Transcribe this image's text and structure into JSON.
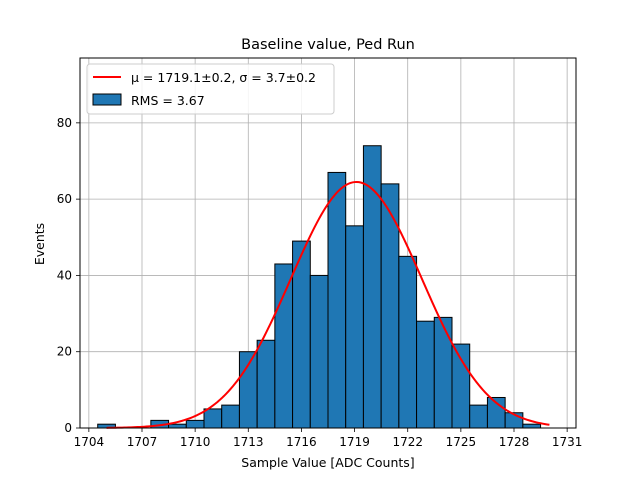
{
  "chart_data": {
    "type": "bar",
    "title": "Baseline value, Ped Run",
    "xlabel": "Sample Value [ADC Counts]",
    "ylabel": "Events",
    "xlim": [
      1703.5,
      1731.5
    ],
    "ylim": [
      0,
      97
    ],
    "grid": true,
    "legend_position": "top-left",
    "xticks": [
      1704,
      1707,
      1710,
      1713,
      1716,
      1719,
      1722,
      1725,
      1728,
      1731
    ],
    "yticks": [
      0,
      20,
      40,
      60,
      80
    ],
    "histogram": {
      "name": "RMS = 3.67",
      "bin_width": 1,
      "bin_starts": [
        1704.5,
        1705.5,
        1706.5,
        1707.5,
        1708.5,
        1709.5,
        1710.5,
        1711.5,
        1712.5,
        1713.5,
        1714.5,
        1715.5,
        1716.5,
        1717.5,
        1718.5,
        1719.5,
        1720.5,
        1721.5,
        1722.5,
        1723.5,
        1724.5,
        1725.5,
        1726.5,
        1727.5,
        1728.5
      ],
      "counts": [
        1,
        0,
        0,
        2,
        1,
        2,
        5,
        6,
        20,
        23,
        43,
        49,
        40,
        67,
        53,
        74,
        64,
        45,
        28,
        29,
        22,
        6,
        8,
        4,
        1
      ],
      "color": "#1f77b4",
      "edgecolor": "#000000"
    },
    "fit": {
      "name": "μ = 1719.1±0.2, σ = 3.7±0.2",
      "type": "gaussian",
      "mu": 1719.1,
      "sigma": 3.7,
      "amplitude": 64.5,
      "x_range": [
        1705,
        1730
      ],
      "color": "#ff0000"
    }
  }
}
